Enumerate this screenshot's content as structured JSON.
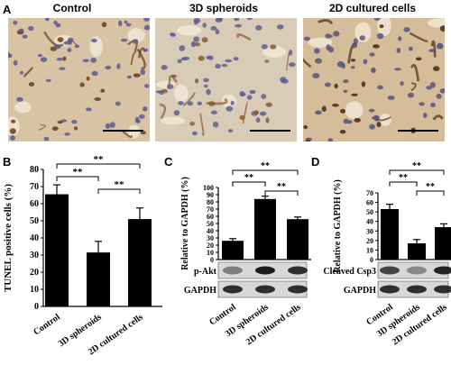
{
  "panel_labels": {
    "A": "A",
    "B": "B",
    "C": "C",
    "D": "D"
  },
  "micrographs": [
    {
      "title": "Control",
      "tint": "#d8c3a5",
      "cell_color": "#5b5a8f",
      "stain_color": "#6b3a1a"
    },
    {
      "title": "3D spheroids",
      "tint": "#d9ccb6",
      "cell_color": "#5d5e92",
      "stain_color": "#8a5a33"
    },
    {
      "title": "2D cultured cells",
      "tint": "#d5bd9a",
      "cell_color": "#56557f",
      "stain_color": "#4a2812"
    }
  ],
  "chart_data": [
    {
      "type": "bar",
      "categories": [
        "Control",
        "3D spheroids",
        "2D cultured cells"
      ],
      "values": [
        65.5,
        31.5,
        51
      ],
      "errors": [
        5.5,
        6.5,
        6.5
      ],
      "ylabel": "TUNEL positive cells (%)",
      "ylim": [
        0,
        80
      ],
      "yticks": [
        "0",
        "10",
        "20",
        "30",
        "40",
        "50",
        "60",
        "70",
        "80"
      ],
      "significance": [
        "**",
        "**",
        "**"
      ]
    },
    {
      "type": "bar",
      "categories": [
        "Control",
        "3D spheroids",
        "2D cultured cells"
      ],
      "values": [
        26,
        84,
        56
      ],
      "errors": [
        3,
        4,
        3
      ],
      "ylabel": "Relative to GAPDH (%)",
      "ylim": [
        0,
        100
      ],
      "yticks": [
        "0",
        "10",
        "20",
        "30",
        "40",
        "50",
        "60",
        "70",
        "80",
        "90",
        "100"
      ],
      "significance": [
        "**",
        "**",
        "**"
      ],
      "blot_labels": [
        "p-Akt",
        "GAPDH"
      ]
    },
    {
      "type": "bar",
      "categories": [
        "Control",
        "3D spheroids",
        "2D cultured cells"
      ],
      "values": [
        53,
        17,
        34
      ],
      "errors": [
        5,
        4,
        3.5
      ],
      "ylabel": "Relative to GAPDH (%)",
      "ylim": [
        0,
        70
      ],
      "yticks": [
        "0",
        "10",
        "20",
        "30",
        "40",
        "50",
        "60",
        "70"
      ],
      "significance": [
        "**",
        "**",
        "**"
      ],
      "blot_labels": [
        "Cleaved Csp3",
        "GAPDH"
      ]
    }
  ]
}
